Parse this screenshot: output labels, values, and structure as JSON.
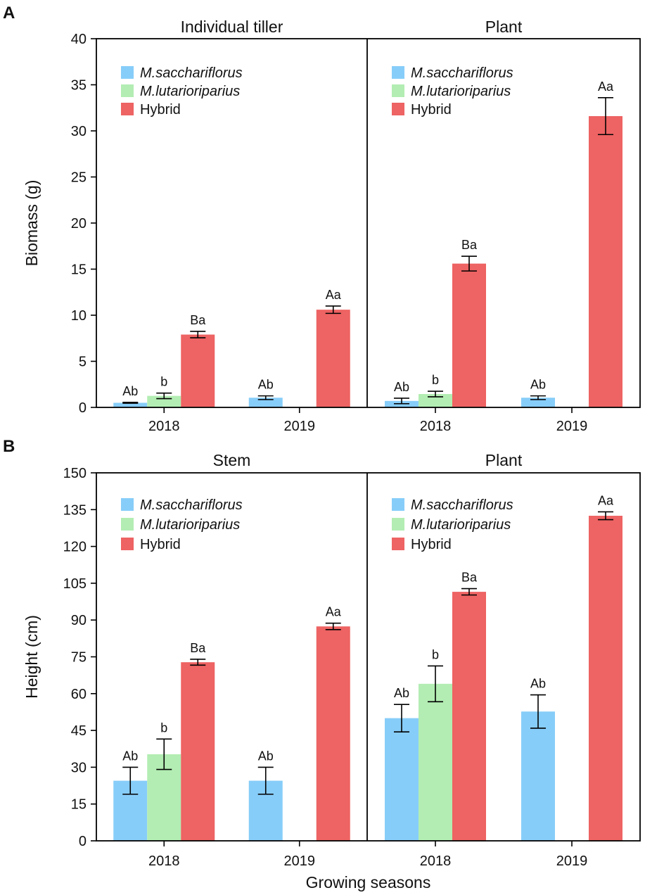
{
  "colors": {
    "M.sacchariflorus": "#87cdf9",
    "M.lutarioriparius": "#b3edb3",
    "Hybrid": "#ee6363"
  },
  "chart_data": [
    {
      "panel": "A",
      "type": "bar",
      "ylabel": "Biomass (g)",
      "ylim": [
        0,
        40
      ],
      "yticks": [
        0,
        5,
        10,
        15,
        20,
        25,
        30,
        35,
        40
      ],
      "legend": [
        "M.sacchariflorus",
        "M.lutarioriparius",
        "Hybrid"
      ],
      "subplots": [
        {
          "title": "Individual tiller",
          "categories": [
            "2018",
            "2019"
          ],
          "series": [
            {
              "name": "M.sacchariflorus",
              "values": [
                0.5,
                1.05
              ],
              "errors": [
                0.05,
                0.2
              ],
              "labels": [
                "Ab",
                "Ab"
              ]
            },
            {
              "name": "M.lutarioriparius",
              "values": [
                1.25,
                null
              ],
              "errors": [
                0.3,
                null
              ],
              "labels": [
                "b",
                null
              ]
            },
            {
              "name": "Hybrid",
              "values": [
                7.9,
                10.6
              ],
              "errors": [
                0.35,
                0.4
              ],
              "labels": [
                "Ba",
                "Aa"
              ]
            }
          ]
        },
        {
          "title": "Plant",
          "categories": [
            "2018",
            "2019"
          ],
          "series": [
            {
              "name": "M.sacchariflorus",
              "values": [
                0.7,
                1.05
              ],
              "errors": [
                0.3,
                0.2
              ],
              "labels": [
                "Ab",
                "Ab"
              ]
            },
            {
              "name": "M.lutarioriparius",
              "values": [
                1.45,
                null
              ],
              "errors": [
                0.3,
                null
              ],
              "labels": [
                "b",
                null
              ]
            },
            {
              "name": "Hybrid",
              "values": [
                15.6,
                31.6
              ],
              "errors": [
                0.8,
                2.0
              ],
              "labels": [
                "Ba",
                "Aa"
              ]
            }
          ]
        }
      ]
    },
    {
      "panel": "B",
      "type": "bar",
      "ylabel": "Height (cm)",
      "xlabel": "Growing seasons",
      "ylim": [
        0,
        150
      ],
      "yticks": [
        0,
        15,
        30,
        45,
        60,
        75,
        90,
        105,
        120,
        135,
        150
      ],
      "legend": [
        "M.sacchariflorus",
        "M.lutarioriparius",
        "Hybrid"
      ],
      "subplots": [
        {
          "title": "Stem",
          "categories": [
            "2018",
            "2019"
          ],
          "series": [
            {
              "name": "M.sacchariflorus",
              "values": [
                24.5,
                24.5
              ],
              "errors": [
                5.5,
                5.5
              ],
              "labels": [
                "Ab",
                "Ab"
              ]
            },
            {
              "name": "M.lutarioriparius",
              "values": [
                35.3,
                null
              ],
              "errors": [
                6.2,
                null
              ],
              "labels": [
                "b",
                null
              ]
            },
            {
              "name": "Hybrid",
              "values": [
                72.8,
                87.4
              ],
              "errors": [
                1.2,
                1.3
              ],
              "labels": [
                "Ba",
                "Aa"
              ]
            }
          ]
        },
        {
          "title": "Plant",
          "categories": [
            "2018",
            "2019"
          ],
          "series": [
            {
              "name": "M.sacchariflorus",
              "values": [
                50.0,
                52.7
              ],
              "errors": [
                5.6,
                6.8
              ],
              "labels": [
                "Ab",
                "Ab"
              ]
            },
            {
              "name": "M.lutarioriparius",
              "values": [
                64.0,
                null
              ],
              "errors": [
                7.3,
                null
              ],
              "labels": [
                "b",
                null
              ]
            },
            {
              "name": "Hybrid",
              "values": [
                101.5,
                132.5
              ],
              "errors": [
                1.3,
                1.6
              ],
              "labels": [
                "Ba",
                "Aa"
              ]
            }
          ]
        }
      ]
    }
  ]
}
